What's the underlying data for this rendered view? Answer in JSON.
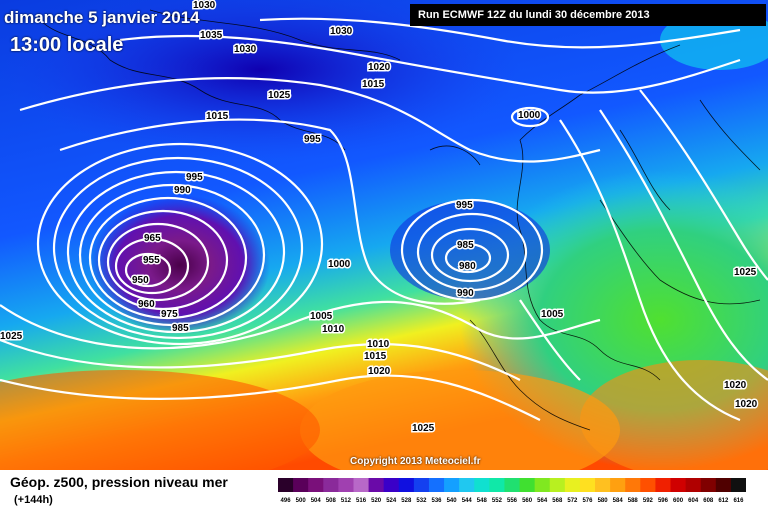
{
  "header": {
    "date": "dimanche 5 janvier 2014",
    "time": "13:00 locale",
    "run": "Run ECMWF 12Z du lundi 30 décembre 2013"
  },
  "copyright": "Copyright 2013 Meteociel.fr",
  "footer": {
    "title": "Géop. z500, pression niveau mer",
    "subtitle": "(+144h)"
  },
  "isobar_labels": [
    "1030",
    "1035",
    "1030",
    "1030",
    "1020",
    "1015",
    "1025",
    "1015",
    "995",
    "1000",
    "995",
    "990",
    "965",
    "955",
    "950",
    "960",
    "975",
    "985",
    "1000",
    "995",
    "985",
    "980",
    "990",
    "1005",
    "1010",
    "1005",
    "1010",
    "1015",
    "1020",
    "1025",
    "1025",
    "1020",
    "1020",
    "1025"
  ],
  "scale": {
    "ticks": [
      "496",
      "500",
      "504",
      "508",
      "512",
      "516",
      "520",
      "524",
      "528",
      "532",
      "536",
      "540",
      "544",
      "548",
      "552",
      "556",
      "560",
      "564",
      "568",
      "572",
      "576",
      "580",
      "584",
      "588",
      "592",
      "596",
      "600",
      "604",
      "608",
      "612",
      "616"
    ],
    "colors": [
      "#2a002a",
      "#5a005a",
      "#7a107a",
      "#8a2a9a",
      "#a040b0",
      "#b868c8",
      "#6a0aa8",
      "#3a00c8",
      "#1010e0",
      "#1440f0",
      "#1470ff",
      "#14a0ff",
      "#20c8f0",
      "#10e0d0",
      "#10e8a8",
      "#20e070",
      "#40e030",
      "#80e820",
      "#b8f020",
      "#e8f020",
      "#ffe020",
      "#ffc020",
      "#ffa010",
      "#ff7808",
      "#ff5000",
      "#f02000",
      "#d00000",
      "#b00000",
      "#800000",
      "#500000",
      "#101010"
    ]
  }
}
